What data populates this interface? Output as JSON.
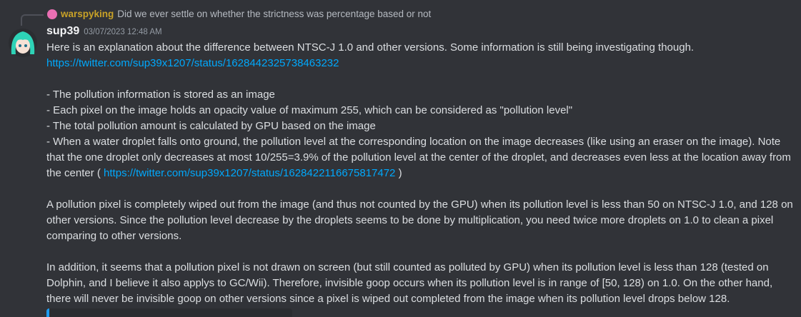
{
  "reply": {
    "author": "warspyking",
    "text": "Did we ever settle on whether the strictness was percentage based or not"
  },
  "message": {
    "author": "sup39",
    "timestamp": "03/07/2023 12:48 AM",
    "intro": "Here is an explanation about the difference between NTSC-J 1.0 and other versions. Some information is still being investigating though.",
    "intro_link": "https://twitter.com/sup39x1207/status/1628442325738463232",
    "bullets": [
      "- The pollution information is stored as an image",
      "- Each pixel on the image holds an opacity value of maximum 255, which can be considered as \"pollution level\"",
      "- The total pollution amount is calculated by GPU based on the image"
    ],
    "bullet_last": {
      "text": "- When a water droplet falls onto ground, the pollution level at the corresponding location on the image decreases (like using an eraser on the image). Note that the one droplet only decreases at most 10/255=3.9% of the pollution level at the center of the droplet, and decreases even less at the location away from the center (",
      "link": "https://twitter.com/sup39x1207/status/1628422116675817472",
      "after": ")"
    },
    "paragraphs": [
      "A pollution pixel is completely wiped out from the image (and thus not counted by the GPU) when its pollution level is less than 50 on NTSC-J 1.0, and 128 on other versions. Since the pollution level decrease by the droplets seems to be done by multiplication, you need twice more droplets on 1.0 to clean a pixel comparing to other versions.",
      "In addition, it seems that a pollution pixel is not drawn on screen (but still counted as polluted by GPU) when its pollution level is less than 128 (tested on Dolphin, and I believe it also applys to GC/Wii). Therefore, invisible goop occurs when its pollution level is in range of [50, 128) on 1.0. On the other hand, there will never be invisible goop on other versions since a pixel is wiped out completed from the image when its pollution level drops below 128."
    ]
  }
}
